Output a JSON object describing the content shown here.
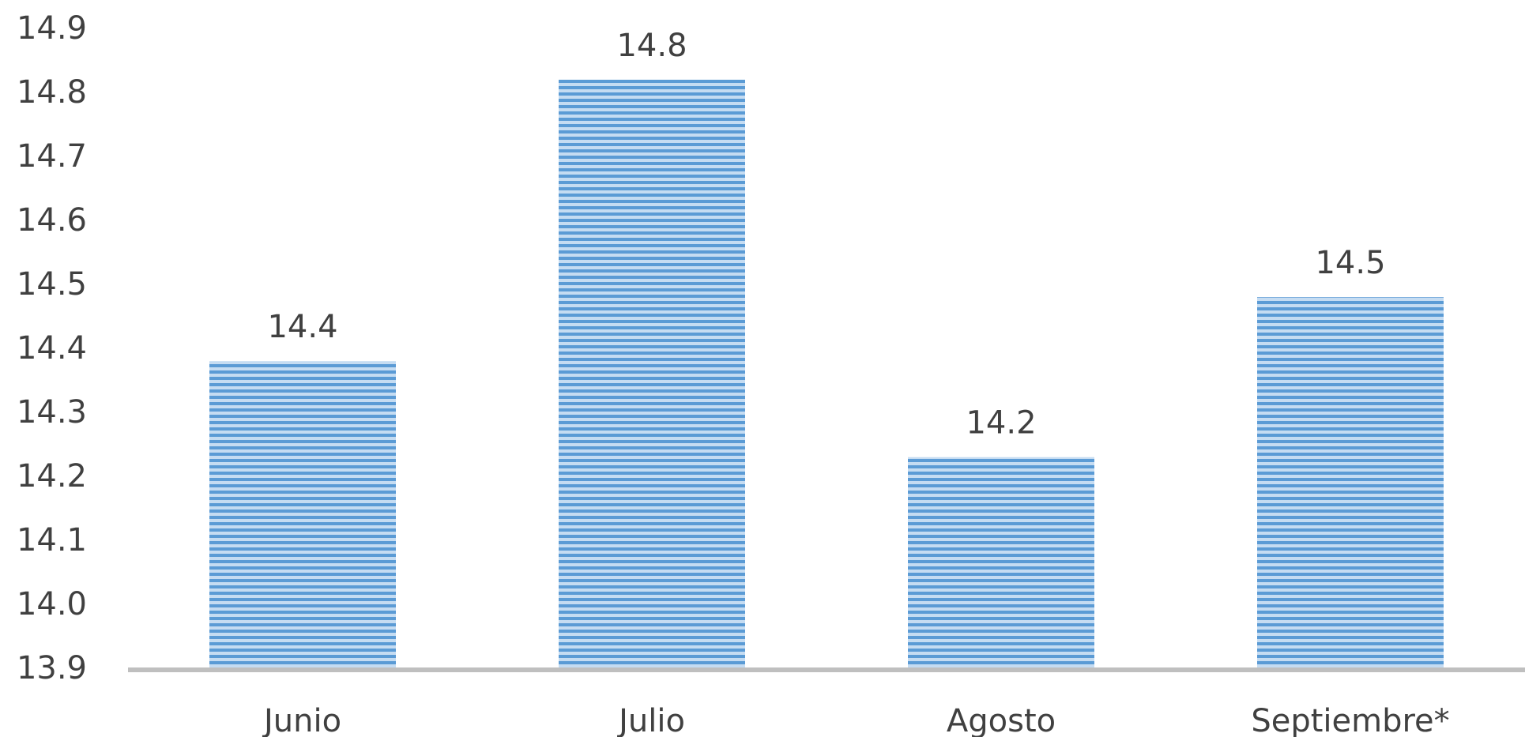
{
  "chart_data": {
    "type": "bar",
    "categories": [
      "Junio",
      "Julio",
      "Agosto",
      "Septiembre*"
    ],
    "values": [
      14.38,
      14.82,
      14.23,
      14.48
    ],
    "data_labels": [
      "14.4",
      "14.8",
      "14.2",
      "14.5"
    ],
    "yticks": [
      "13.9",
      "14.0",
      "14.1",
      "14.2",
      "14.3",
      "14.4",
      "14.5",
      "14.6",
      "14.7",
      "14.8",
      "14.9"
    ],
    "ylim": [
      13.9,
      14.9
    ],
    "title": "",
    "xlabel": "",
    "ylabel": "",
    "grid": false,
    "legend": "none",
    "bar_color": "#5b9bd5",
    "bar_stripe_color": "#c5dcf2",
    "axis_color": "#bfbfbf"
  }
}
